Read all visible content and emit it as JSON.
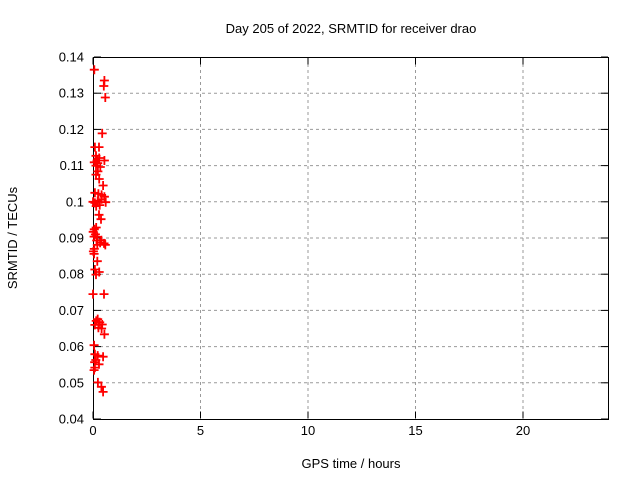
{
  "chart_data": {
    "type": "scatter",
    "title": "Day 205 of 2022, SRMTID for receiver drao",
    "xlabel": "GPS time / hours",
    "ylabel": "SRMTID / TECUs",
    "xlim": [
      0,
      24
    ],
    "ylim": [
      0.04,
      0.14
    ],
    "xticks": {
      "values": [
        0,
        5,
        10,
        15,
        20
      ],
      "labels": [
        "0",
        "5",
        "10",
        "15",
        "20"
      ]
    },
    "yticks": {
      "values": [
        0.04,
        0.05,
        0.06,
        0.07,
        0.08,
        0.09,
        0.1,
        0.11,
        0.12,
        0.13,
        0.14
      ],
      "labels": [
        "0.04",
        "0.05",
        "0.06",
        "0.07",
        "0.08",
        "0.09",
        "0.1",
        "0.11",
        "0.12",
        "0.13",
        "0.14"
      ]
    },
    "grid": {
      "show": true,
      "style": "dashed",
      "color": "#9a9a9a"
    },
    "legend": "none",
    "background": "#ffffff",
    "axis_color": "#000000",
    "series": [
      {
        "name": "srmtid",
        "marker": "plus",
        "color": "#ff0000",
        "points": [
          [
            0.06,
            0.1365
          ],
          [
            0.53,
            0.1335
          ],
          [
            0.5,
            0.132
          ],
          [
            0.57,
            0.1288
          ],
          [
            0.43,
            0.1189
          ],
          [
            0.09,
            0.1151
          ],
          [
            0.28,
            0.1151
          ],
          [
            0.14,
            0.1127
          ],
          [
            0.29,
            0.1121
          ],
          [
            0.53,
            0.1114
          ],
          [
            0.19,
            0.1114
          ],
          [
            0.06,
            0.1109
          ],
          [
            0.22,
            0.1107
          ],
          [
            0.14,
            0.11
          ],
          [
            0.34,
            0.1096
          ],
          [
            0.23,
            0.1084
          ],
          [
            0.14,
            0.1075
          ],
          [
            0.29,
            0.1063
          ],
          [
            0.47,
            0.1045
          ],
          [
            0.09,
            0.1025
          ],
          [
            0.25,
            0.1022
          ],
          [
            0.4,
            0.1019
          ],
          [
            0.53,
            0.1014
          ],
          [
            0.4,
            0.1007
          ],
          [
            0.22,
            0.1003
          ],
          [
            0.0,
            0.1
          ],
          [
            0.59,
            0.0999
          ],
          [
            0.09,
            0.0997
          ],
          [
            0.31,
            0.0991
          ],
          [
            0.15,
            0.0988
          ],
          [
            0.28,
            0.0964
          ],
          [
            0.37,
            0.0952
          ],
          [
            0.15,
            0.0929
          ],
          [
            0.06,
            0.0924
          ],
          [
            0.01,
            0.0917
          ],
          [
            0.11,
            0.091
          ],
          [
            0.05,
            0.0904
          ],
          [
            0.2,
            0.0903
          ],
          [
            0.39,
            0.0894
          ],
          [
            0.17,
            0.0893
          ],
          [
            0.33,
            0.0887
          ],
          [
            0.51,
            0.0885
          ],
          [
            0.57,
            0.0881
          ],
          [
            0.2,
            0.0881
          ],
          [
            0.06,
            0.087
          ],
          [
            0.02,
            0.0863
          ],
          [
            0.05,
            0.0856
          ],
          [
            0.2,
            0.0836
          ],
          [
            0.09,
            0.0813
          ],
          [
            0.29,
            0.0806
          ],
          [
            0.14,
            0.0799
          ],
          [
            0.0,
            0.0745
          ],
          [
            0.51,
            0.0745
          ],
          [
            0.22,
            0.0676
          ],
          [
            0.15,
            0.0671
          ],
          [
            0.31,
            0.0667
          ],
          [
            0.43,
            0.0661
          ],
          [
            0.09,
            0.066
          ],
          [
            0.25,
            0.0652
          ],
          [
            0.4,
            0.065
          ],
          [
            0.53,
            0.0634
          ],
          [
            0.05,
            0.0604
          ],
          [
            0.09,
            0.0579
          ],
          [
            0.22,
            0.0575
          ],
          [
            0.47,
            0.0572
          ],
          [
            0.13,
            0.0563
          ],
          [
            0.08,
            0.0557
          ],
          [
            0.28,
            0.0551
          ],
          [
            0.09,
            0.0542
          ],
          [
            0.05,
            0.0535
          ],
          [
            0.23,
            0.0501
          ],
          [
            0.39,
            0.0489
          ],
          [
            0.47,
            0.0475
          ]
        ]
      }
    ]
  }
}
